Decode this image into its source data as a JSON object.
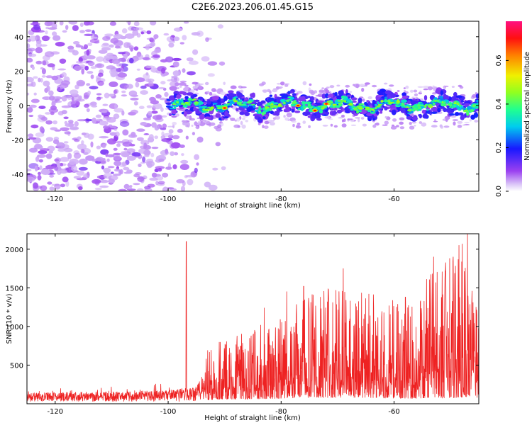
{
  "title": "C2E6.2023.206.01.45.G15",
  "colors": {
    "snr_line": "#ee2222",
    "axes": "#000000",
    "background": "#ffffff"
  },
  "chart_data": [
    {
      "type": "heatmap",
      "xlabel": "Height of straight line (km)",
      "ylabel": "Frequency (Hz)",
      "xlim": [
        -125,
        -45
      ],
      "ylim": [
        -50,
        49
      ],
      "x_ticks": [
        -120,
        -100,
        -80,
        -60
      ],
      "y_ticks": [
        -40,
        -20,
        0,
        20,
        40
      ],
      "grid": false,
      "colorbar": {
        "label": "Normalized spectral amplitude",
        "range": [
          0,
          0.78
        ],
        "ticks": [
          0.0,
          0.2,
          0.4,
          0.6
        ],
        "colormap": "rainbow (violet-blue-cyan-green-yellow-red-magenta)"
      },
      "features": {
        "noise_region_km": [
          -125,
          -93
        ],
        "signal_band_start_km": -100,
        "signal_band_center_hz": 0,
        "signal_band_halfwidth_hz": 5,
        "peak_amplitude_near_km": [
          -90,
          -77,
          -74,
          -72
        ]
      }
    },
    {
      "type": "line",
      "xlabel": "Height of straight line (km)",
      "ylabel": "SNR (10 * v/v)",
      "xlim": [
        -125,
        -45
      ],
      "ylim": [
        0,
        2200
      ],
      "x_ticks": [
        -120,
        -100,
        -80,
        -60
      ],
      "y_ticks": [
        500,
        1000,
        1500,
        2000
      ],
      "grid": false,
      "series": [
        {
          "color": "#ee2222",
          "envelope_x": [
            -125,
            -110,
            -100,
            -95,
            -93,
            -90,
            -85,
            -80,
            -76,
            -72,
            -69,
            -65,
            -60,
            -56,
            -54,
            -50,
            -47,
            -45
          ],
          "envelope_upper": [
            200,
            230,
            260,
            350,
            750,
            820,
            1000,
            1100,
            1400,
            1550,
            1500,
            1500,
            1350,
            1250,
            1900,
            2000,
            2200,
            1000
          ],
          "envelope_lower": [
            0,
            0,
            0,
            0,
            50,
            60,
            60,
            70,
            80,
            80,
            80,
            80,
            70,
            70,
            80,
            70,
            90,
            80
          ],
          "notable_peaks": [
            {
              "x": -96.8,
              "y": 2100
            },
            {
              "x": -93,
              "y": 690
            },
            {
              "x": -83,
              "y": 1240
            },
            {
              "x": -79,
              "y": 1450
            },
            {
              "x": -76,
              "y": 1520
            },
            {
              "x": -69,
              "y": 1750
            },
            {
              "x": -58,
              "y": 1380
            },
            {
              "x": -53,
              "y": 1900
            },
            {
              "x": -48.5,
              "y": 2050
            },
            {
              "x": -47,
              "y": 2200
            }
          ]
        }
      ]
    }
  ]
}
